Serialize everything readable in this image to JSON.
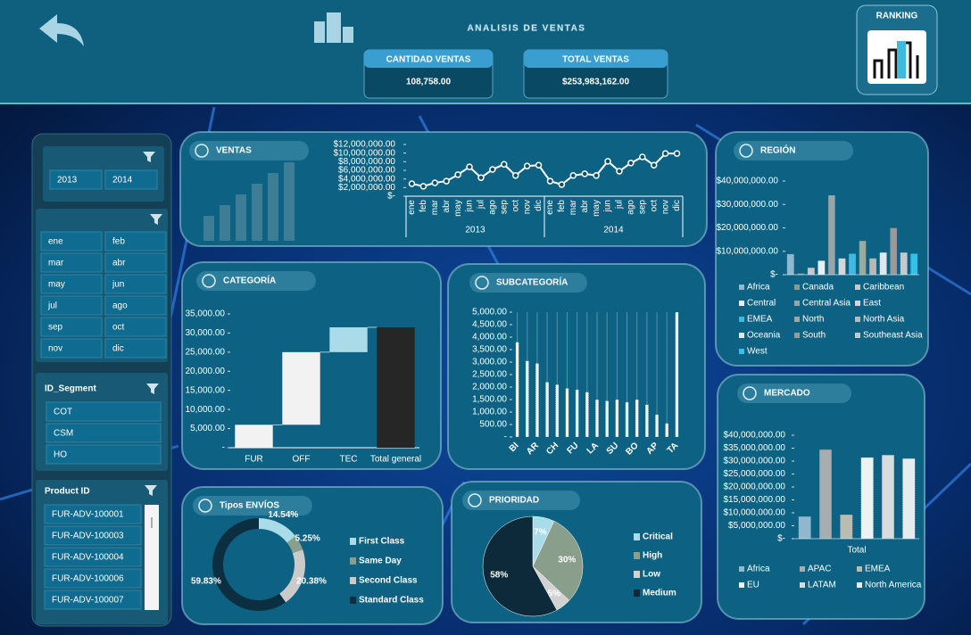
{
  "header": {
    "title": "ANALISIS DE VENTAS",
    "ranking": "RANKING",
    "kpis": [
      {
        "label": "CANTIDAD VENTAS",
        "value": "108,758.00"
      },
      {
        "label": "TOTAL VENTAS",
        "value": "$253,983,162.00"
      }
    ]
  },
  "slicers": {
    "years": [
      "2013",
      "2014"
    ],
    "months": [
      "ene",
      "feb",
      "mar",
      "abr",
      "may",
      "jun",
      "jul",
      "ago",
      "sep",
      "oct",
      "nov",
      "dic"
    ],
    "segment": {
      "title": "ID_Segment",
      "items": [
        "COT",
        "CSM",
        "HO"
      ]
    },
    "product": {
      "title": "Product ID",
      "items": [
        "FUR-ADV-100001",
        "FUR-ADV-100003",
        "FUR-ADV-100004",
        "FUR-ADV-100006",
        "FUR-ADV-100007"
      ]
    }
  },
  "chart_data": [
    {
      "type": "line",
      "title": "VENTAS",
      "color": "#ffffff",
      "categories": [
        "ene",
        "feb",
        "mar",
        "abr",
        "may",
        "jun",
        "jul",
        "ago",
        "sep",
        "oct",
        "nov",
        "dic",
        "ene",
        "feb",
        "mar",
        "abr",
        "may",
        "jun",
        "jul",
        "ago",
        "sep",
        "oct",
        "nov",
        "dic"
      ],
      "category_groups": [
        "2013",
        "2014"
      ],
      "values": [
        2900000,
        2300000,
        3100000,
        3500000,
        5000000,
        6800000,
        4300000,
        6200000,
        7400000,
        4800000,
        7000000,
        7200000,
        3500000,
        2700000,
        4800000,
        5200000,
        4800000,
        8100000,
        5800000,
        7700000,
        9100000,
        7200000,
        9900000,
        9900000
      ],
      "ylim": [
        0,
        12000000
      ],
      "yticks": [
        {
          "value": 0,
          "label": "$-"
        },
        {
          "value": 2000000,
          "label": "$2,000,000.00"
        },
        {
          "value": 4000000,
          "label": "$4,000,000.00"
        },
        {
          "value": 6000000,
          "label": "$6,000,000.00"
        },
        {
          "value": 8000000,
          "label": "$8,000,000.00"
        },
        {
          "value": 10000000,
          "label": "$10,000,000.00"
        },
        {
          "value": 12000000,
          "label": "$12,000,000.00"
        }
      ]
    },
    {
      "type": "waterfall",
      "title": "CATEGORÍA",
      "categories": [
        "FUR",
        "OFF",
        "TEC",
        "Total general"
      ],
      "values": [
        6000,
        19000,
        6500,
        31500
      ],
      "colors": [
        "#f2f2f2",
        "#f2f2f2",
        "#a9dbe8",
        "#262626"
      ],
      "ylim": [
        0,
        35000
      ],
      "yticks": [
        {
          "value": 0,
          "label": "-"
        },
        {
          "value": 5000,
          "label": "5,000.00"
        },
        {
          "value": 10000,
          "label": "10,000.00"
        },
        {
          "value": 15000,
          "label": "15,000.00"
        },
        {
          "value": 20000,
          "label": "20,000.00"
        },
        {
          "value": 25000,
          "label": "25,000.00"
        },
        {
          "value": 30000,
          "label": "30,000.00"
        },
        {
          "value": 35000,
          "label": "35,000.00"
        }
      ]
    },
    {
      "type": "bar",
      "title": "SUBCATEGORÍA",
      "color": "#f2f2f2",
      "categories": [
        "BI",
        null,
        "AR",
        null,
        "CH",
        null,
        "FU",
        null,
        "LA",
        null,
        "SU",
        null,
        "BO",
        null,
        "AP",
        null,
        "TA"
      ],
      "values": [
        3800,
        3050,
        2950,
        2200,
        2100,
        1950,
        1900,
        1800,
        1500,
        1450,
        1500,
        1400,
        1500,
        1300,
        900,
        550,
        5000
      ],
      "ylim": [
        0,
        5000
      ],
      "yticks": [
        {
          "value": 0,
          "label": "-"
        },
        {
          "value": 500,
          "label": "500.00"
        },
        {
          "value": 1000,
          "label": "1,000.00"
        },
        {
          "value": 1500,
          "label": "1,500.00"
        },
        {
          "value": 2000,
          "label": "2,000.00"
        },
        {
          "value": 2500,
          "label": "2,500.00"
        },
        {
          "value": 3000,
          "label": "3,000.00"
        },
        {
          "value": 3500,
          "label": "3,500.00"
        },
        {
          "value": 4000,
          "label": "4,000.00"
        },
        {
          "value": 4500,
          "label": "4,500.00"
        },
        {
          "value": 5000,
          "label": "5,000.00"
        }
      ]
    },
    {
      "type": "grouped_bar",
      "title": "REGIÓN",
      "ylim": [
        0,
        40000000
      ],
      "yticks": [
        {
          "value": 0,
          "label": "$-"
        },
        {
          "value": 10000000,
          "label": "$10,000,000.00"
        },
        {
          "value": 20000000,
          "label": "$20,000,000.00"
        },
        {
          "value": 30000000,
          "label": "$30,000,000.00"
        },
        {
          "value": 40000000,
          "label": "$40,000,000.00"
        }
      ],
      "series": [
        {
          "name": "Africa",
          "color": "#8fb8cf",
          "values": [
            8800000
          ]
        },
        {
          "name": "Canada",
          "color": "#8c9a8c",
          "values": [
            600000
          ]
        },
        {
          "name": "Caribbean",
          "color": "#c9c9c9",
          "values": [
            3000000
          ]
        },
        {
          "name": "Central",
          "color": "#e8eef2",
          "values": [
            6000000
          ]
        },
        {
          "name": "Central Asia",
          "color": "#9aa5a8",
          "values": [
            34000000
          ]
        },
        {
          "name": "East",
          "color": "#d6d6d6",
          "values": [
            7000000
          ]
        },
        {
          "name": "EMEA",
          "color": "#3db9e3",
          "values": [
            9000000
          ]
        },
        {
          "name": "North",
          "color": "#a0a89c",
          "values": [
            14500000
          ]
        },
        {
          "name": "North Asia",
          "color": "#b8b8b8",
          "values": [
            7000000
          ]
        },
        {
          "name": "Oceania",
          "color": "#dfe7ea",
          "values": [
            9500000
          ]
        },
        {
          "name": "South",
          "color": "#9a9a9a",
          "values": [
            20000000
          ]
        },
        {
          "name": "Southeast Asia",
          "color": "#c3c9cc",
          "values": [
            9500000
          ]
        },
        {
          "name": "West",
          "color": "#35c0ea",
          "values": [
            9000000
          ]
        }
      ]
    },
    {
      "type": "grouped_bar",
      "title": "MERCADO",
      "categories": [
        "Total"
      ],
      "ylim": [
        0,
        40000000
      ],
      "yticks": [
        {
          "value": 0,
          "label": "$-"
        },
        {
          "value": 5000000,
          "label": "$5,000,000.00"
        },
        {
          "value": 10000000,
          "label": "$10,000,000.00"
        },
        {
          "value": 15000000,
          "label": "$15,000,000.00"
        },
        {
          "value": 20000000,
          "label": "$20,000,000.00"
        },
        {
          "value": 25000000,
          "label": "$25,000,000.00"
        },
        {
          "value": 30000000,
          "label": "$30,000,000.00"
        },
        {
          "value": 35000000,
          "label": "$35,000,000.00"
        },
        {
          "value": 40000000,
          "label": "$40,000,000.00"
        }
      ],
      "series": [
        {
          "name": "Africa",
          "color": "#8fb8cf",
          "values": [
            8600000
          ]
        },
        {
          "name": "APAC",
          "color": "#a7aeb0",
          "values": [
            34500000
          ]
        },
        {
          "name": "EMEA",
          "color": "#b9bdb0",
          "values": [
            9300000
          ]
        },
        {
          "name": "EU",
          "color": "#eef2f4",
          "values": [
            31400000
          ]
        },
        {
          "name": "LATAM",
          "color": "#d8dcde",
          "values": [
            32400000
          ]
        },
        {
          "name": "North America",
          "color": "#e4ecef",
          "values": [
            31000000
          ]
        }
      ]
    },
    {
      "type": "donut",
      "title": "Tipos ENVÍOS",
      "categories": [
        "First Class",
        "Same Day",
        "Second Class",
        "Standard Class"
      ],
      "values": [
        14.54,
        5.25,
        20.38,
        59.83
      ],
      "value_labels": [
        "14.54%",
        "5.25%",
        "20.38%",
        "59.83%"
      ],
      "colors": [
        "#a9dbe8",
        "#8a9e8c",
        "#cacaca",
        "#0b2f40"
      ]
    },
    {
      "type": "pie",
      "title": "PRIORIDAD",
      "categories": [
        "Critical",
        "High",
        "Low",
        "Medium"
      ],
      "values": [
        7,
        30,
        5,
        58
      ],
      "value_labels": [
        "7%",
        "30%",
        "5%",
        "58%"
      ],
      "colors": [
        "#a9dbe8",
        "#8a9e8c",
        "#d2d2d2",
        "#0c2a3a"
      ]
    }
  ]
}
